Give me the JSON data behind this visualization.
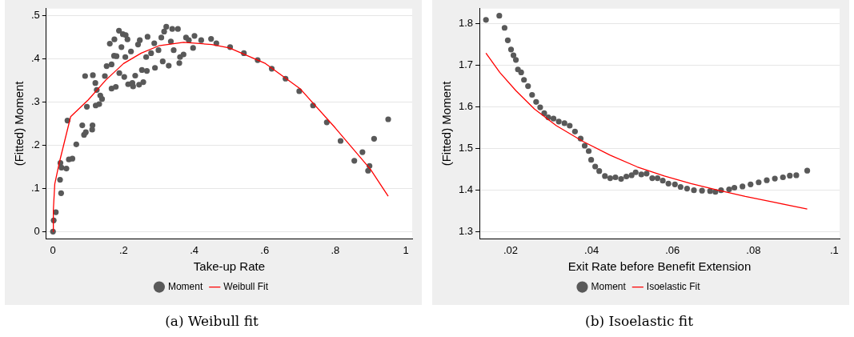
{
  "chart_data": [
    {
      "type": "scatter",
      "title": "(a) Weibull fit",
      "xlabel": "Take-up Rate",
      "ylabel": "(Fitted) Moment",
      "xlim": [
        -0.019,
        1.018
      ],
      "ylim": [
        -0.016,
        0.516
      ],
      "xticks": [
        0,
        {
          "value": 0.2,
          "label": ".2"
        },
        {
          "value": 0.4,
          "label": ".4"
        },
        {
          "value": 0.6,
          "label": ".6"
        },
        {
          "value": 0.8,
          "label": ".8"
        },
        1
      ],
      "yticks": [
        0,
        {
          "value": 0.1,
          "label": ".1"
        },
        {
          "value": 0.2,
          "label": ".2"
        },
        {
          "value": 0.3,
          "label": ".3"
        },
        {
          "value": 0.4,
          "label": ".4"
        },
        {
          "value": 0.5,
          "label": ".5"
        }
      ],
      "grid": "y",
      "legend": "bottom",
      "series": [
        {
          "name": "Moment",
          "type": "scatter",
          "marker": "circle",
          "color": "#595959",
          "x": [
            0,
            0.002,
            0.008,
            0.02,
            0.023,
            0.021,
            0.024,
            0.038,
            0.041,
            0.045,
            0.055,
            0.066,
            0.083,
            0.088,
            0.093,
            0.091,
            0.096,
            0.112,
            0.111,
            0.113,
            0.12,
            0.124,
            0.121,
            0.131,
            0.139,
            0.134,
            0.147,
            0.152,
            0.161,
            0.166,
            0.166,
            0.174,
            0.173,
            0.178,
            0.18,
            0.187,
            0.188,
            0.194,
            0.198,
            0.202,
            0.206,
            0.211,
            0.205,
            0.213,
            0.221,
            0.225,
            0.233,
            0.227,
            0.241,
            0.246,
            0.244,
            0.256,
            0.252,
            0.268,
            0.266,
            0.264,
            0.278,
            0.287,
            0.289,
            0.299,
            0.307,
            0.311,
            0.315,
            0.321,
            0.328,
            0.334,
            0.338,
            0.342,
            0.354,
            0.358,
            0.36,
            0.37,
            0.377,
            0.385,
            0.401,
            0.397,
            0.42,
            0.448,
            0.463,
            0.502,
            0.541,
            0.58,
            0.62,
            0.659,
            0.698,
            0.737,
            0.776,
            0.815,
            0.854,
            0.877,
            0.893,
            0.897,
            0.91,
            0.95
          ],
          "values": [
            0,
            0.026,
            0.045,
            0.12,
            0.089,
            0.159,
            0.148,
            0.146,
            0.257,
            0.167,
            0.169,
            0.202,
            0.246,
            0.224,
            0.23,
            0.36,
            0.289,
            0.246,
            0.236,
            0.362,
            0.344,
            0.328,
            0.292,
            0.295,
            0.307,
            0.315,
            0.36,
            0.383,
            0.435,
            0.387,
            0.331,
            0.445,
            0.407,
            0.335,
            0.406,
            0.465,
            0.367,
            0.427,
            0.457,
            0.358,
            0.455,
            0.445,
            0.404,
            0.341,
            0.417,
            0.344,
            0.361,
            0.336,
            0.433,
            0.443,
            0.34,
            0.346,
            0.374,
            0.451,
            0.372,
            0.404,
            0.413,
            0.436,
            0.379,
            0.42,
            0.449,
            0.394,
            0.463,
            0.474,
            0.384,
            0.44,
            0.469,
            0.42,
            0.469,
            0.39,
            0.404,
            0.41,
            0.449,
            0.443,
            0.453,
            0.425,
            0.443,
            0.446,
            0.436,
            0.427,
            0.413,
            0.397,
            0.377,
            0.354,
            0.325,
            0.292,
            0.253,
            0.21,
            0.164,
            0.184,
            0.141,
            0.152,
            0.215,
            0.26
          ]
        },
        {
          "name": "Weibull Fit",
          "type": "line",
          "marker": "none",
          "color": "#ff0000",
          "x": [
            0,
            0.001,
            0.005,
            0.018,
            0.05,
            0.1,
            0.15,
            0.2,
            0.25,
            0.3,
            0.37,
            0.45,
            0.5,
            0.6,
            0.7,
            0.8,
            0.9,
            0.95
          ],
          "values": [
            0,
            0.05,
            0.11,
            0.16,
            0.266,
            0.305,
            0.351,
            0.389,
            0.413,
            0.43,
            0.438,
            0.433,
            0.425,
            0.39,
            0.331,
            0.24,
            0.144,
            0.082
          ]
        }
      ]
    },
    {
      "type": "scatter",
      "title": "(b) Isoelastic fit",
      "xlabel": "Exit Rate before Benefit Extension",
      "ylabel": "(Fitted) Moment",
      "xlim": [
        0.0123,
        0.1013
      ],
      "ylim": [
        1.284,
        1.836
      ],
      "xticks": [
        {
          "value": 0.02,
          "label": ".02"
        },
        {
          "value": 0.04,
          "label": ".04"
        },
        {
          "value": 0.06,
          "label": ".06"
        },
        {
          "value": 0.08,
          "label": ".08"
        },
        {
          "value": 0.1,
          "label": ".1"
        }
      ],
      "yticks": [
        1.3,
        1.4,
        1.5,
        1.6,
        1.7,
        1.8
      ],
      "grid": "y",
      "legend": "bottom",
      "series": [
        {
          "name": "Moment",
          "type": "scatter",
          "marker": "circle",
          "color": "#595959",
          "x": [
            0.0139,
            0.0172,
            0.0185,
            0.0193,
            0.0201,
            0.0207,
            0.0213,
            0.0218,
            0.0226,
            0.0233,
            0.0243,
            0.0253,
            0.0263,
            0.0273,
            0.0283,
            0.0293,
            0.0306,
            0.0319,
            0.0333,
            0.0346,
            0.0359,
            0.0373,
            0.0383,
            0.0393,
            0.0399,
            0.0409,
            0.0419,
            0.0433,
            0.0446,
            0.0459,
            0.0473,
            0.0486,
            0.0499,
            0.0509,
            0.0523,
            0.0536,
            0.055,
            0.0563,
            0.0576,
            0.059,
            0.0606,
            0.062,
            0.0636,
            0.0653,
            0.0673,
            0.0693,
            0.0706,
            0.072,
            0.074,
            0.0753,
            0.0773,
            0.0793,
            0.0813,
            0.0833,
            0.0853,
            0.0873,
            0.089,
            0.0906,
            0.0933
          ],
          "values": [
            1.809,
            1.819,
            1.79,
            1.76,
            1.738,
            1.724,
            1.713,
            1.69,
            1.683,
            1.665,
            1.65,
            1.629,
            1.612,
            1.599,
            1.585,
            1.575,
            1.572,
            1.565,
            1.561,
            1.555,
            1.541,
            1.524,
            1.507,
            1.494,
            1.473,
            1.457,
            1.446,
            1.434,
            1.429,
            1.431,
            1.427,
            1.433,
            1.436,
            1.443,
            1.438,
            1.44,
            1.429,
            1.429,
            1.423,
            1.416,
            1.414,
            1.408,
            1.404,
            1.4,
            1.399,
            1.398,
            1.396,
            1.4,
            1.402,
            1.406,
            1.409,
            1.414,
            1.419,
            1.424,
            1.428,
            1.431,
            1.435,
            1.436,
            1.447
          ]
        },
        {
          "name": "Isoelastic Fit",
          "type": "line",
          "marker": "none",
          "color": "#ff0000",
          "x": [
            0.0139,
            0.0173,
            0.0213,
            0.0259,
            0.0313,
            0.0379,
            0.0446,
            0.0513,
            0.058,
            0.0646,
            0.0713,
            0.078,
            0.0846,
            0.0933
          ],
          "values": [
            1.729,
            1.683,
            1.639,
            1.595,
            1.555,
            1.517,
            1.484,
            1.456,
            1.434,
            1.416,
            1.4,
            1.385,
            1.372,
            1.355
          ]
        }
      ]
    }
  ]
}
